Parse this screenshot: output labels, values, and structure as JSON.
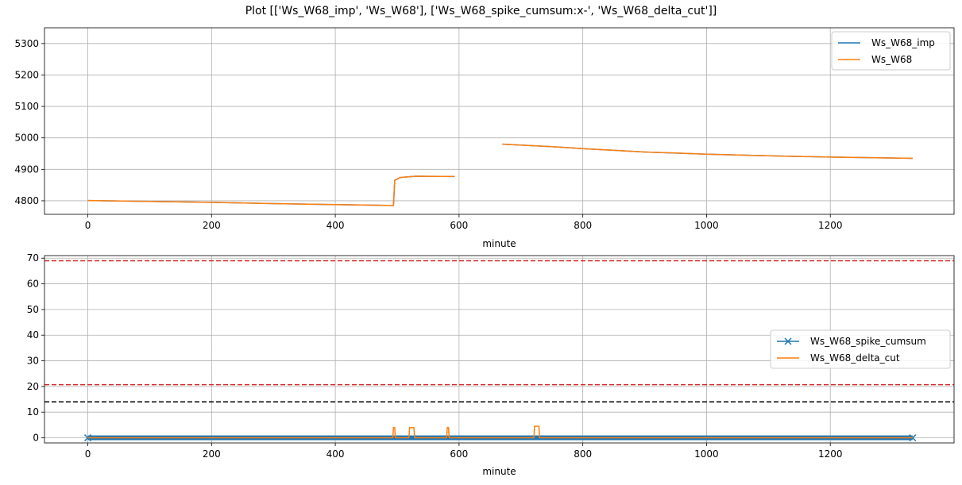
{
  "figure_title": "Plot [['Ws_W68_imp', 'Ws_W68'], ['Ws_W68_spike_cumsum:x-', 'Ws_W68_delta_cut']]",
  "colors": {
    "blue": "#1f77b4",
    "orange": "#ff7f0e",
    "red": "#d62728",
    "black": "#000000",
    "grid": "#b0b0b0"
  },
  "chart_data": [
    {
      "type": "line",
      "xlabel": "minute",
      "ylabel": "",
      "xlim": [
        -70,
        1400
      ],
      "ylim": [
        4757,
        5350
      ],
      "xticks": [
        0,
        200,
        400,
        600,
        800,
        1000,
        1200
      ],
      "yticks": [
        4800,
        4900,
        5000,
        5100,
        5200,
        5300
      ],
      "grid": true,
      "legend": "upper right",
      "series": [
        {
          "name": "Ws_W68_imp",
          "color": "#1f77b4",
          "segments": [
            [
              [
                0,
                4801
              ],
              [
                100,
                4798
              ],
              [
                200,
                4795
              ],
              [
                300,
                4791
              ],
              [
                400,
                4788
              ],
              [
                494,
                4785
              ],
              [
                496,
                4865
              ],
              [
                505,
                4874
              ],
              [
                530,
                4878
              ],
              [
                593,
                4877
              ]
            ],
            [
              [
                670,
                4980
              ],
              [
                750,
                4972
              ],
              [
                800,
                4966
              ],
              [
                900,
                4955
              ],
              [
                1000,
                4948
              ],
              [
                1100,
                4943
              ],
              [
                1200,
                4939
              ],
              [
                1333,
                4935
              ]
            ]
          ]
        },
        {
          "name": "Ws_W68",
          "color": "#ff7f0e",
          "segments": [
            [
              [
                0,
                4801
              ],
              [
                100,
                4798
              ],
              [
                200,
                4795
              ],
              [
                300,
                4791
              ],
              [
                400,
                4788
              ],
              [
                494,
                4785
              ],
              [
                496,
                4865
              ],
              [
                505,
                4874
              ],
              [
                530,
                4878
              ],
              [
                593,
                4877
              ]
            ],
            [
              [
                670,
                4980
              ],
              [
                750,
                4972
              ],
              [
                800,
                4966
              ],
              [
                900,
                4955
              ],
              [
                950,
                4952
              ],
              [
                1000,
                4948
              ],
              [
                1100,
                4943
              ],
              [
                1200,
                4939
              ],
              [
                1333,
                4935
              ]
            ]
          ]
        }
      ]
    },
    {
      "type": "line",
      "xlabel": "minute",
      "ylabel": "",
      "xlim": [
        -70,
        1400
      ],
      "ylim": [
        -2,
        71
      ],
      "xticks": [
        0,
        200,
        400,
        600,
        800,
        1000,
        1200
      ],
      "yticks": [
        0,
        10,
        20,
        30,
        40,
        50,
        60,
        70
      ],
      "grid": true,
      "legend": "center right",
      "series": [
        {
          "name": "Ws_W68_spike_cumsum",
          "color": "#1f77b4",
          "marker": "x",
          "segments": [
            [
              [
                0,
                0
              ],
              [
                1333,
                0
              ]
            ]
          ]
        },
        {
          "name": "Ws_W68_delta_cut",
          "color": "#ff7f0e",
          "segments": [
            [
              [
                0,
                0
              ],
              [
                493,
                0
              ],
              [
                494,
                4
              ],
              [
                496,
                4
              ],
              [
                497,
                0
              ],
              [
                519,
                0
              ],
              [
                520,
                4
              ],
              [
                527,
                4
              ],
              [
                528,
                0
              ],
              [
                580,
                0
              ],
              [
                581,
                4
              ],
              [
                583,
                4
              ],
              [
                584,
                0
              ],
              [
                721,
                0
              ],
              [
                722,
                4.5
              ],
              [
                729,
                4.5
              ],
              [
                730,
                0
              ],
              [
                1333,
                0
              ]
            ]
          ]
        }
      ],
      "hlines": [
        {
          "y": 69,
          "color": "#d62728",
          "style": "dashed"
        },
        {
          "y": 20.7,
          "color": "#d62728",
          "style": "dashed"
        },
        {
          "y": 14,
          "color": "#000000",
          "style": "dashed"
        }
      ]
    }
  ]
}
